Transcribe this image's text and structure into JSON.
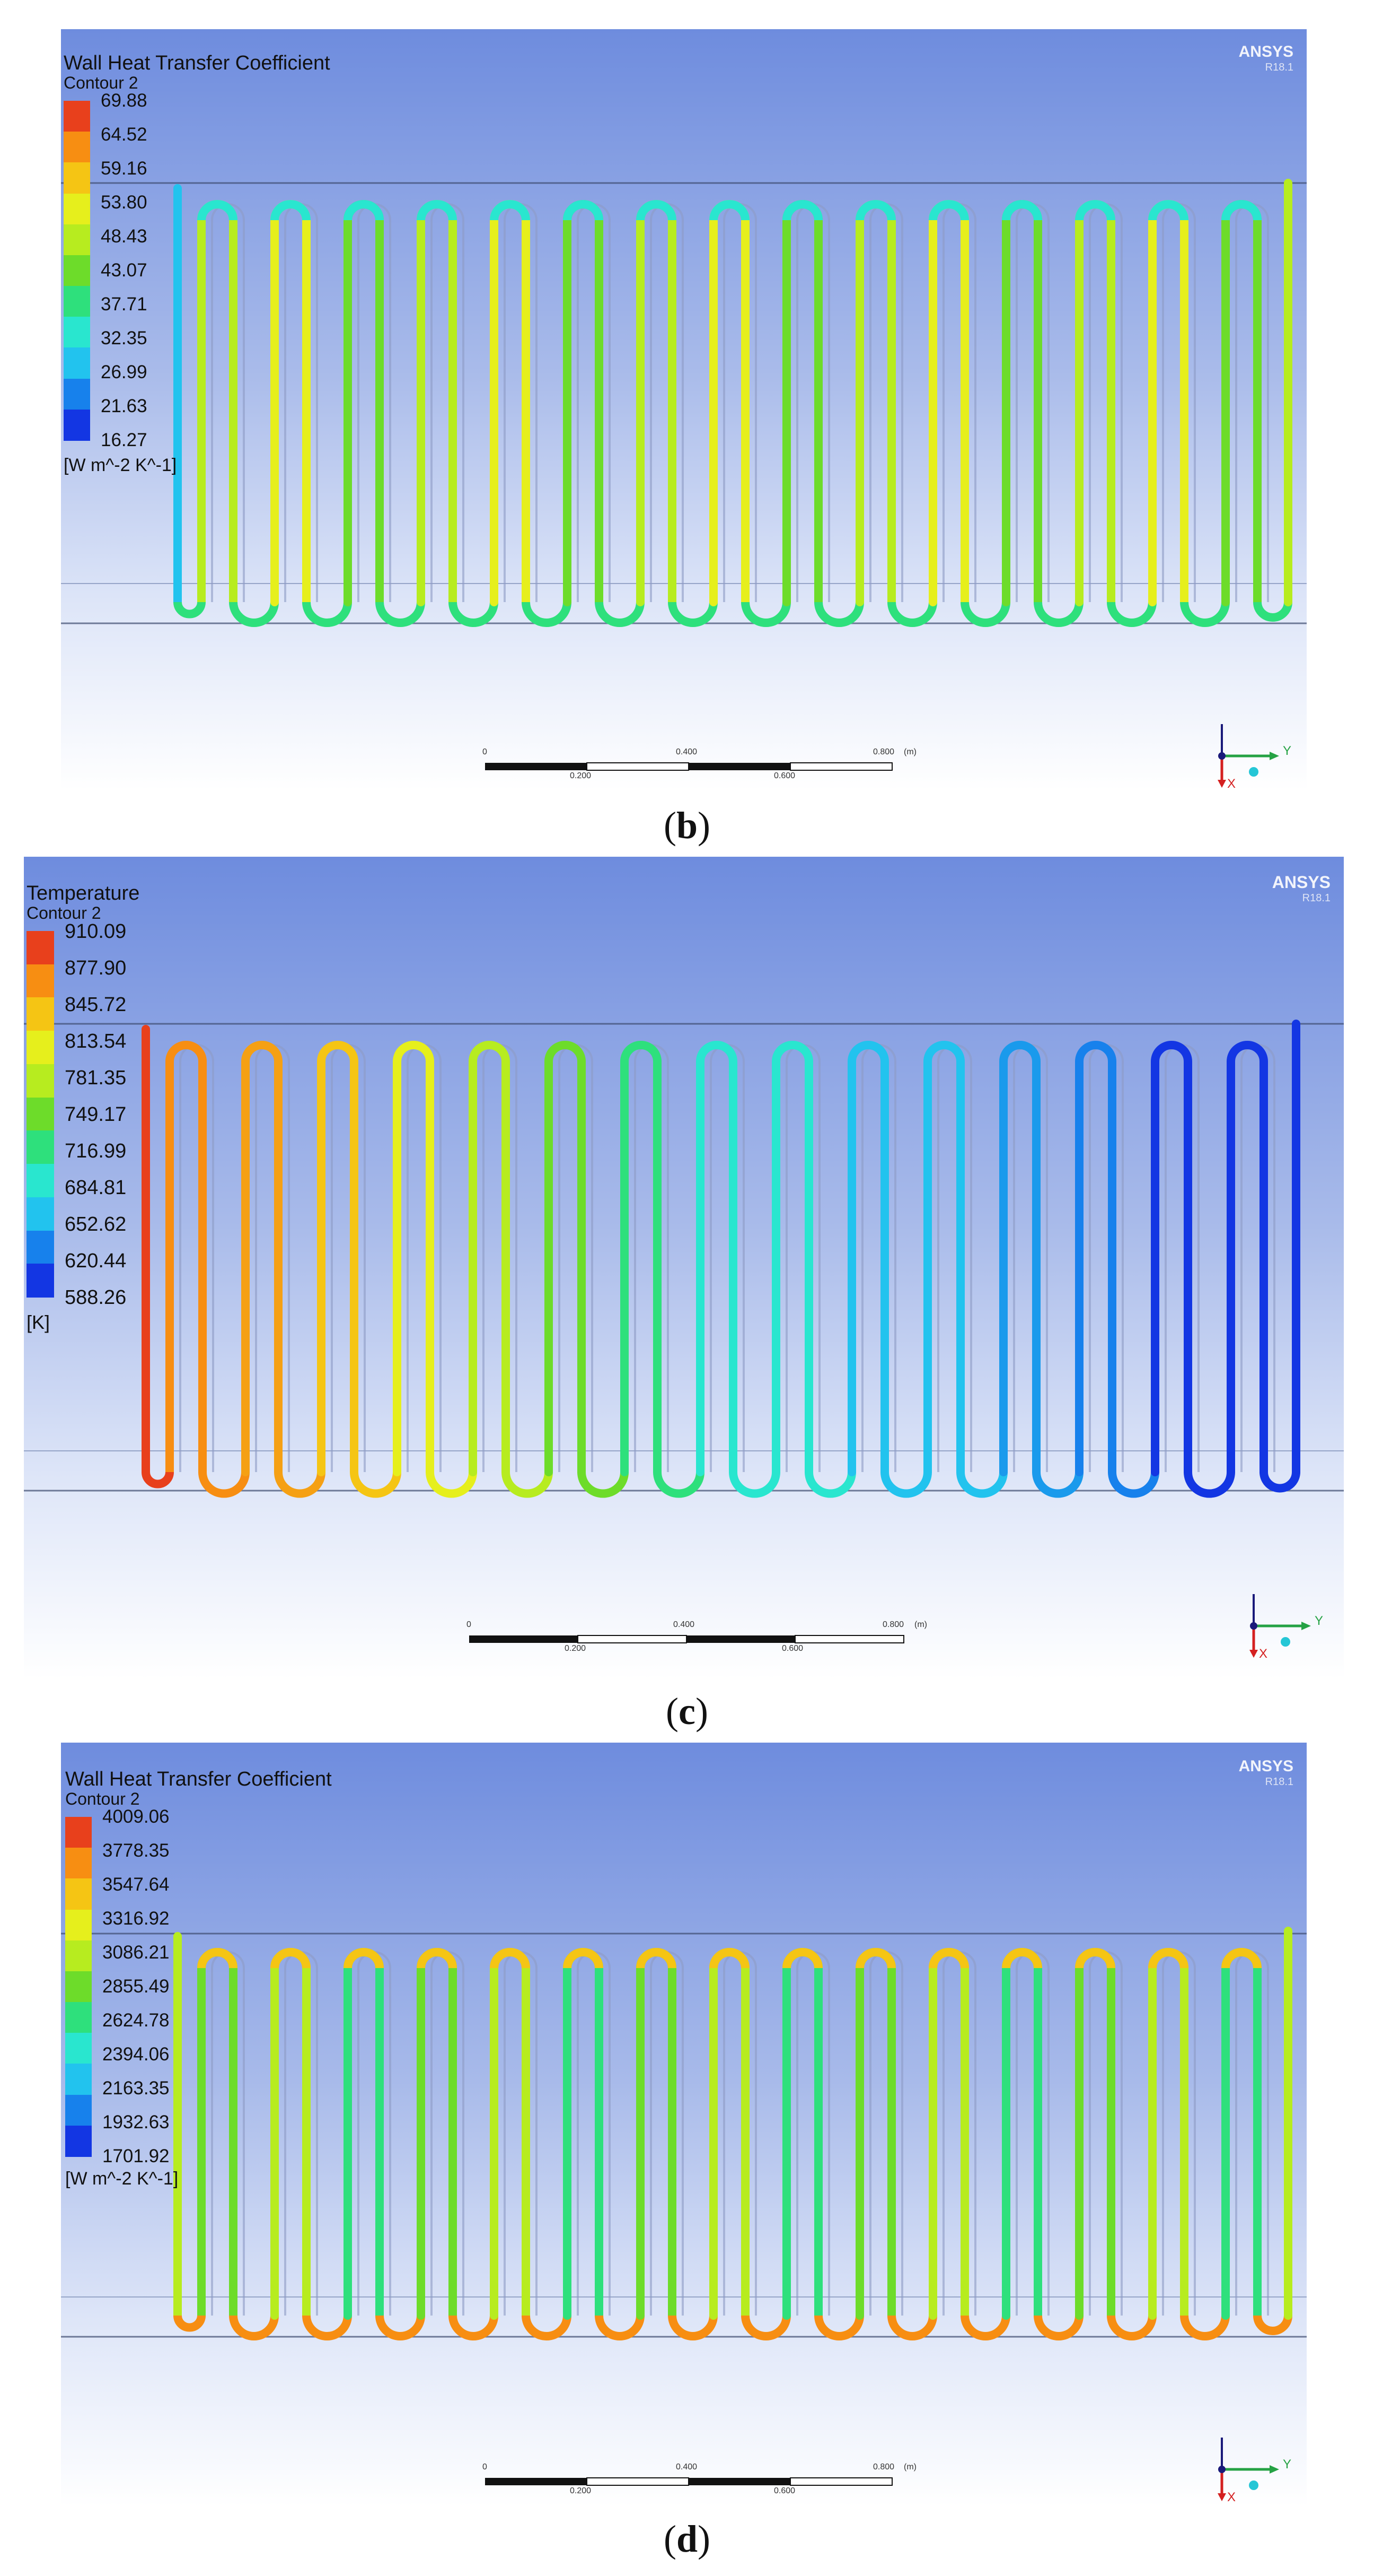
{
  "panels": [
    {
      "id": "b",
      "title": "Wall Heat Transfer Coefficient",
      "subtitle": "Contour 2",
      "ticks": [
        "69.88",
        "64.52",
        "59.16",
        "53.80",
        "48.43",
        "43.07",
        "37.71",
        "32.35",
        "26.99",
        "21.63",
        "16.27"
      ],
      "unit": "[W m^-2 K^-1]",
      "brand": "ANSYS",
      "version": "R18.1",
      "scale_labels": [
        "0",
        "0.400",
        "0.800",
        "(m)",
        "0.200",
        "0.600"
      ],
      "caption": "b",
      "colors": [
        "#e8401c",
        "#f78e12",
        "#f5c514",
        "#e6ef1c",
        "#b7ec1f",
        "#6ddc2a",
        "#2ee07c",
        "#29e6cf",
        "#22c3ee",
        "#1781ec",
        "#1336e3"
      ]
    },
    {
      "id": "c",
      "title": "Temperature",
      "subtitle": "Contour 2",
      "ticks": [
        "910.09",
        "877.90",
        "845.72",
        "813.54",
        "781.35",
        "749.17",
        "716.99",
        "684.81",
        "652.62",
        "620.44",
        "588.26"
      ],
      "unit": "[K]",
      "brand": "ANSYS",
      "version": "R18.1",
      "scale_labels": [
        "0",
        "0.400",
        "0.800",
        "(m)",
        "0.200",
        "0.600"
      ],
      "caption": "c",
      "colors": [
        "#e8401c",
        "#f78e12",
        "#f5c514",
        "#e6ef1c",
        "#b7ec1f",
        "#6ddc2a",
        "#2ee07c",
        "#29e6cf",
        "#22c3ee",
        "#1781ec",
        "#1336e3"
      ]
    },
    {
      "id": "d",
      "title": "Wall Heat Transfer Coefficient",
      "subtitle": "Contour 2",
      "ticks": [
        "4009.06",
        "3778.35",
        "3547.64",
        "3316.92",
        "3086.21",
        "2855.49",
        "2624.78",
        "2394.06",
        "2163.35",
        "1932.63",
        "1701.92"
      ],
      "unit": "[W m^-2 K^-1]",
      "brand": "ANSYS",
      "version": "R18.1",
      "scale_labels": [
        "0",
        "0.400",
        "0.800",
        "(m)",
        "0.200",
        "0.600"
      ],
      "caption": "d",
      "colors": [
        "#e8401c",
        "#f78e12",
        "#f5c514",
        "#e6ef1c",
        "#b7ec1f",
        "#6ddc2a",
        "#2ee07c",
        "#29e6cf",
        "#22c3ee",
        "#1781ec",
        "#1336e3"
      ]
    }
  ],
  "triad_axes": [
    "Y",
    "X"
  ]
}
